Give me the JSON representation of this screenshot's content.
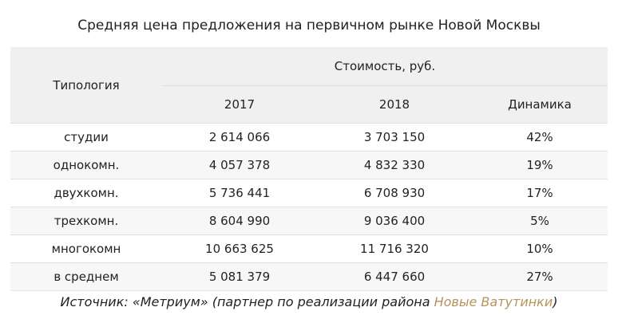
{
  "title": "Средняя цена предложения на первичном рынке Новой Москвы",
  "table": {
    "header_typology": "Типология",
    "header_cost": "Стоимость, руб.",
    "header_2017": "2017",
    "header_2018": "2018",
    "header_dynamics": "Динамика",
    "rows": [
      {
        "type": "студии",
        "y2017": "2 614 066",
        "y2018": "3 703 150",
        "dyn": "42%"
      },
      {
        "type": "однокомн.",
        "y2017": "4 057 378",
        "y2018": "4 832 330",
        "dyn": "19%"
      },
      {
        "type": "двухкомн.",
        "y2017": "5 736 441",
        "y2018": "6 708 930",
        "dyn": "17%"
      },
      {
        "type": "трехкомн.",
        "y2017": "8 604 990",
        "y2018": "9 036 400",
        "dyn": "5%"
      },
      {
        "type": "многокомн",
        "y2017": "10 663 625",
        "y2018": "11 716 320",
        "dyn": "10%"
      },
      {
        "type": "в среднем",
        "y2017": "5 081 379",
        "y2018": "6 447 660",
        "dyn": "27%"
      }
    ]
  },
  "source": {
    "prefix": "Источник: «Метриум» (партнер по реализации района ",
    "link_text": "Новые Ватутинки",
    "suffix": ")",
    "link_color": "#b5935b"
  }
}
